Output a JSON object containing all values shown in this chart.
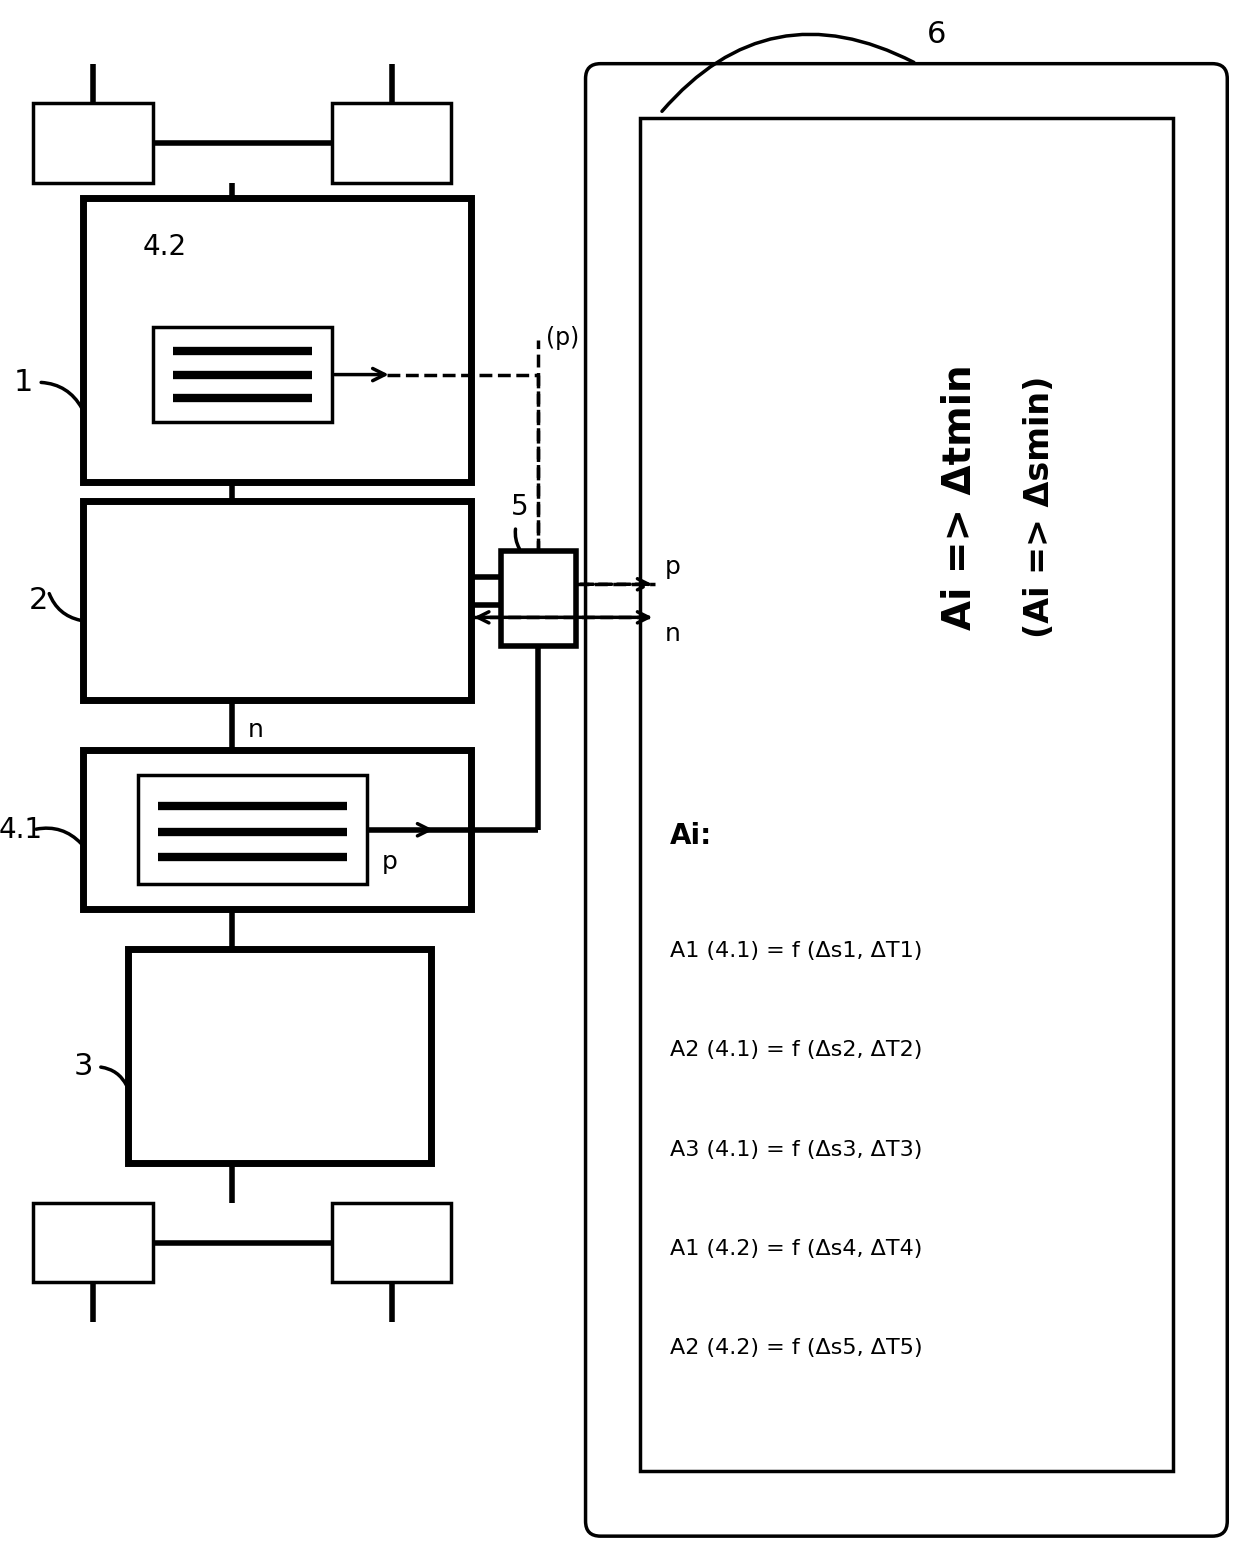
{
  "bg_color": "#ffffff",
  "line_color": "#000000",
  "fig_width": 12.4,
  "fig_height": 15.63,
  "label_1": "1",
  "label_2": "2",
  "label_3": "3",
  "label_4_1": "4.1",
  "label_4_2": "4.2",
  "label_5": "5",
  "label_6": "6",
  "label_n": "n",
  "label_p": "p",
  "label_p_paren": "(p)",
  "label_n2": "n",
  "text_ai_header": "Ai:",
  "text_line1": "A1 (4.1) = f (Δs1, ΔT1)",
  "text_line2": "A2 (4.1) = f (Δs2, ΔT2)",
  "text_line3": "A3 (4.1) = f (Δs3, ΔT3)",
  "text_line4": "A1 (4.2) = f (Δs4, ΔT4)",
  "text_line5": "A2 (4.2) = f (Δs5, ΔT5)",
  "text_ai_bold1": "Ai => Δtmin",
  "text_ai_bold2": "(Ai => Δsmin)"
}
